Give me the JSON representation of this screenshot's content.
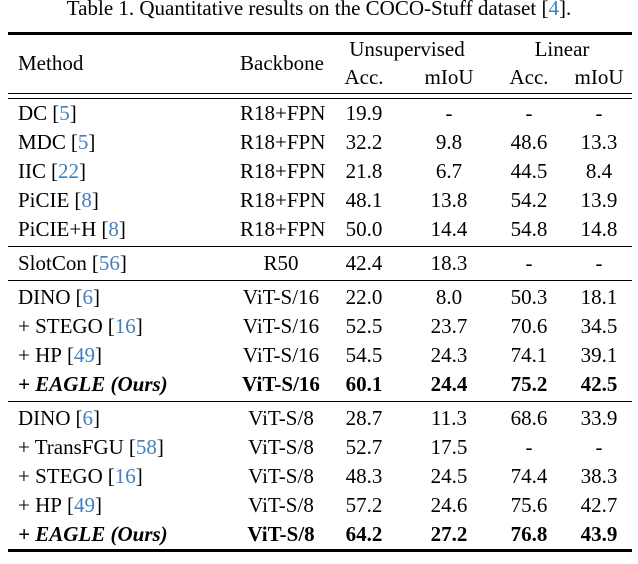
{
  "caption": {
    "prefix": "Table 1. Quantitative results on the COCO-Stuff dataset ",
    "cite": "4",
    "suffix": "."
  },
  "punct": {
    "open": "[",
    "close": "]"
  },
  "colors": {
    "citation_blue": "#4080c0",
    "text": "#000000",
    "background": "#ffffff"
  },
  "header": {
    "method": "Method",
    "backbone": "Backbone",
    "group_unsupervised": "Unsupervised",
    "group_linear": "Linear",
    "acc": "Acc.",
    "miou": "mIoU"
  },
  "rows": [
    {
      "name": "DC",
      "cite": "5",
      "backbone": "R18+FPN",
      "values": [
        "19.9",
        "-",
        "-",
        "-"
      ]
    },
    {
      "name": "MDC",
      "cite": "5",
      "backbone": "R18+FPN",
      "values": [
        "32.2",
        "9.8",
        "48.6",
        "13.3"
      ]
    },
    {
      "name": "IIC",
      "cite": "22",
      "backbone": "R18+FPN",
      "values": [
        "21.8",
        "6.7",
        "44.5",
        "8.4"
      ]
    },
    {
      "name": "PiCIE",
      "cite": "8",
      "backbone": "R18+FPN",
      "values": [
        "48.1",
        "13.8",
        "54.2",
        "13.9"
      ]
    },
    {
      "name": "PiCIE+H",
      "cite": "8",
      "backbone": "R18+FPN",
      "values": [
        "50.0",
        "14.4",
        "54.8",
        "14.8"
      ]
    },
    {
      "name": "SlotCon",
      "cite": "56",
      "backbone": "R50",
      "values": [
        "42.4",
        "18.3",
        "-",
        "-"
      ]
    },
    {
      "name": "DINO",
      "cite": "6",
      "backbone": "ViT-S/16",
      "values": [
        "22.0",
        "8.0",
        "50.3",
        "18.1"
      ]
    },
    {
      "name": "+ STEGO",
      "cite": "16",
      "backbone": "ViT-S/16",
      "values": [
        "52.5",
        "23.7",
        "70.6",
        "34.5"
      ]
    },
    {
      "name": "+ HP",
      "cite": "49",
      "backbone": "ViT-S/16",
      "values": [
        "54.5",
        "24.3",
        "74.1",
        "39.1"
      ]
    },
    {
      "name": "+ EAGLE (Ours)",
      "cite": "",
      "backbone": "ViT-S/16",
      "values": [
        "60.1",
        "24.4",
        "75.2",
        "42.5"
      ]
    },
    {
      "name": "DINO",
      "cite": "6",
      "backbone": "ViT-S/8",
      "values": [
        "28.7",
        "11.3",
        "68.6",
        "33.9"
      ]
    },
    {
      "name": "+ TransFGU",
      "cite": "58",
      "backbone": "ViT-S/8",
      "values": [
        "52.7",
        "17.5",
        "-",
        "-"
      ]
    },
    {
      "name": "+ STEGO",
      "cite": "16",
      "backbone": "ViT-S/8",
      "values": [
        "48.3",
        "24.5",
        "74.4",
        "38.3"
      ]
    },
    {
      "name": "+ HP",
      "cite": "49",
      "backbone": "ViT-S/8",
      "values": [
        "57.2",
        "24.6",
        "75.6",
        "42.7"
      ]
    },
    {
      "name": "+ EAGLE (Ours)",
      "cite": "",
      "backbone": "ViT-S/8",
      "values": [
        "64.2",
        "27.2",
        "76.8",
        "43.9"
      ]
    }
  ]
}
